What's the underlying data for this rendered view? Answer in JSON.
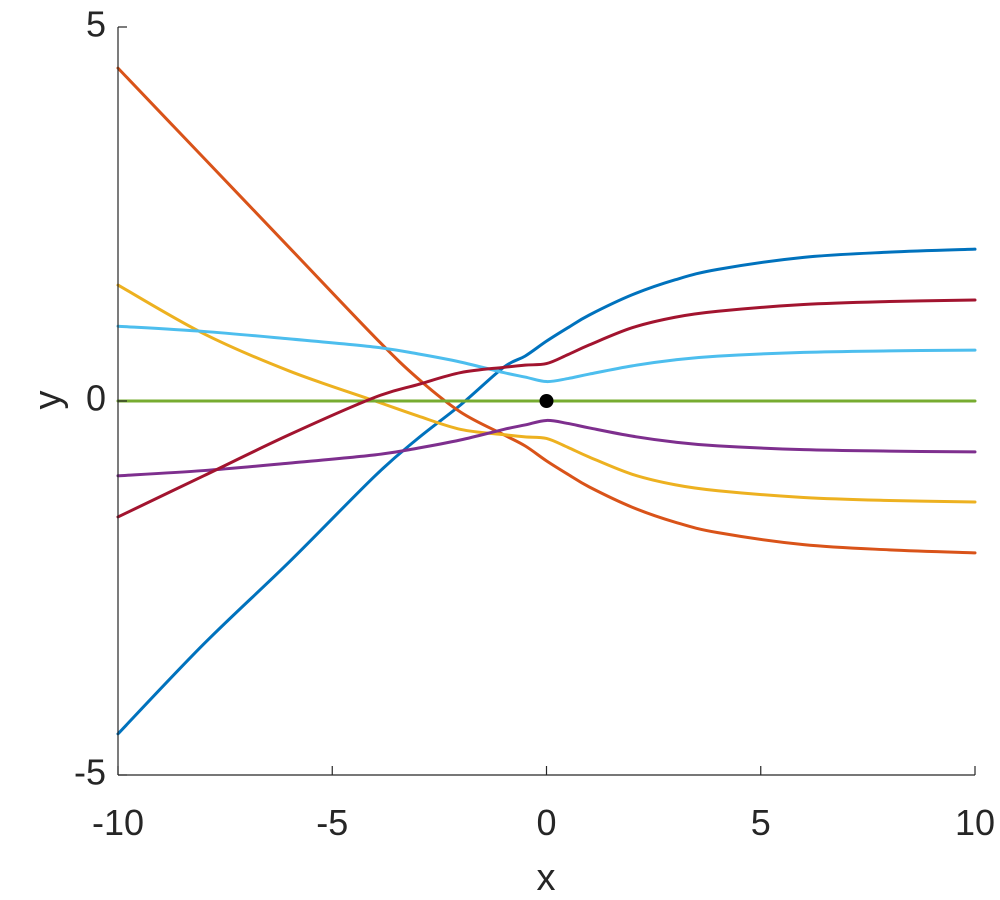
{
  "chart_data": {
    "type": "line",
    "title": "",
    "xlabel": "x",
    "ylabel": "y",
    "xlim": [
      -10,
      10
    ],
    "ylim": [
      -5,
      5
    ],
    "xticks": [
      -10,
      -5,
      0,
      5,
      10
    ],
    "yticks": [
      -5,
      0,
      5
    ],
    "xtick_labels": [
      "-10",
      "-5",
      "0",
      "5",
      "10"
    ],
    "ytick_labels": [
      "-5",
      "0",
      "5"
    ],
    "grid": false,
    "legend": "none",
    "series": [
      {
        "color": "#0072BD",
        "x": [
          -10,
          -8,
          -6,
          -4,
          -3,
          -2,
          -1,
          -0.5,
          0,
          0.5,
          1,
          2,
          3,
          4,
          6,
          8,
          10
        ],
        "y": [
          -4.45,
          -3.25,
          -2.15,
          -1.0,
          -0.5,
          -0.05,
          0.45,
          0.6,
          0.8,
          0.98,
          1.15,
          1.42,
          1.62,
          1.76,
          1.92,
          1.99,
          2.03
        ]
      },
      {
        "color": "#D95319",
        "x": [
          -10,
          -8,
          -6,
          -4,
          -3,
          -2,
          -1,
          -0.5,
          0,
          0.5,
          1,
          2,
          3,
          4,
          6,
          8,
          10
        ],
        "y": [
          4.45,
          3.25,
          2.05,
          0.85,
          0.3,
          -0.15,
          -0.45,
          -0.6,
          -0.8,
          -0.98,
          -1.15,
          -1.42,
          -1.62,
          -1.76,
          -1.92,
          -1.99,
          -2.03
        ]
      },
      {
        "color": "#EDB120",
        "x": [
          -10,
          -8,
          -6,
          -4,
          -3,
          -2,
          -1,
          -0.5,
          0,
          0.5,
          1,
          2,
          3,
          4,
          6,
          8,
          10
        ],
        "y": [
          1.55,
          0.9,
          0.4,
          0.0,
          -0.2,
          -0.38,
          -0.45,
          -0.48,
          -0.5,
          -0.62,
          -0.75,
          -0.98,
          -1.12,
          -1.2,
          -1.29,
          -1.33,
          -1.35
        ]
      },
      {
        "color": "#7E2F8E",
        "x": [
          -10,
          -8,
          -6,
          -4,
          -3,
          -2,
          -1,
          -0.5,
          0,
          0.5,
          1,
          2,
          3,
          4,
          6,
          8,
          10
        ],
        "y": [
          -1.0,
          -0.93,
          -0.83,
          -0.72,
          -0.63,
          -0.52,
          -0.38,
          -0.32,
          -0.26,
          -0.3,
          -0.36,
          -0.47,
          -0.55,
          -0.6,
          -0.65,
          -0.67,
          -0.68
        ]
      },
      {
        "color": "#77AC30",
        "x": [
          -10,
          10
        ],
        "y": [
          0,
          0
        ]
      },
      {
        "color": "#4DBEEE",
        "x": [
          -10,
          -8,
          -6,
          -4,
          -3,
          -2,
          -1,
          -0.5,
          0,
          0.5,
          1,
          2,
          3,
          4,
          6,
          8,
          10
        ],
        "y": [
          1.0,
          0.93,
          0.83,
          0.72,
          0.63,
          0.52,
          0.38,
          0.32,
          0.26,
          0.3,
          0.36,
          0.47,
          0.55,
          0.6,
          0.65,
          0.67,
          0.68
        ]
      },
      {
        "color": "#A2142F",
        "x": [
          -10,
          -8,
          -6,
          -4,
          -3,
          -2,
          -1,
          -0.5,
          0,
          0.5,
          1,
          2,
          3,
          4,
          6,
          8,
          10
        ],
        "y": [
          -1.55,
          -1.0,
          -0.45,
          0.05,
          0.22,
          0.38,
          0.45,
          0.48,
          0.5,
          0.62,
          0.75,
          0.98,
          1.12,
          1.2,
          1.29,
          1.33,
          1.35
        ]
      }
    ],
    "points": [
      {
        "x": 0,
        "y": 0,
        "color": "#000000"
      }
    ]
  }
}
